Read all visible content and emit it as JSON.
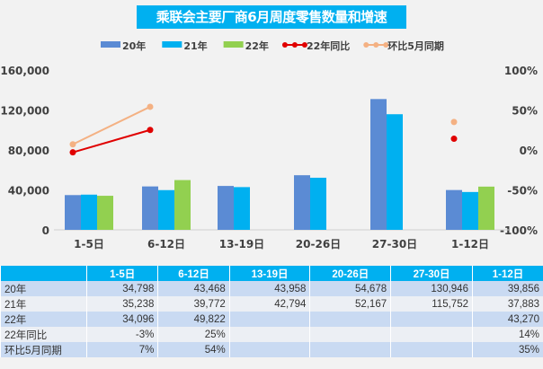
{
  "chart_data": {
    "type": "bar",
    "title": "乘联会主要厂商6月周度零售数量和增速",
    "categories": [
      "1-5日",
      "6-12日",
      "13-19日",
      "20-26日",
      "27-30日",
      "1-12日"
    ],
    "series": [
      {
        "name": "20年",
        "type": "bar",
        "axis": "left",
        "color": "#5b8bd4",
        "values": [
          34798,
          43468,
          43958,
          54678,
          130946,
          39856
        ]
      },
      {
        "name": "21年",
        "type": "bar",
        "axis": "left",
        "color": "#00b0f0",
        "values": [
          35238,
          39772,
          42794,
          52167,
          115752,
          37883
        ]
      },
      {
        "name": "22年",
        "type": "bar",
        "axis": "left",
        "color": "#92d050",
        "values": [
          34096,
          49822,
          null,
          null,
          null,
          43270
        ]
      },
      {
        "name": "22年同比",
        "type": "line",
        "axis": "right",
        "color": "#e00000",
        "values": [
          -3,
          25,
          null,
          null,
          null,
          14
        ]
      },
      {
        "name": "环比5月同期",
        "type": "line",
        "axis": "right",
        "color": "#f4b183",
        "values": [
          7,
          54,
          null,
          null,
          null,
          35
        ]
      }
    ],
    "left_axis": {
      "ylim": [
        0,
        160000
      ],
      "ticks": [
        "0",
        "40,000",
        "80,000",
        "120,000",
        "160,000"
      ]
    },
    "right_axis": {
      "ylim": [
        -100,
        100
      ],
      "ticks": [
        "-100%",
        "-50%",
        "0%",
        "50%",
        "100%"
      ]
    },
    "legend_position": "top",
    "grid": false
  },
  "table": {
    "headers": [
      "",
      "1-5日",
      "6-12日",
      "13-19日",
      "20-26日",
      "27-30日",
      "1-12日"
    ],
    "rows": [
      [
        "20年",
        "34,798",
        "43,468",
        "43,958",
        "54,678",
        "130,946",
        "39,856"
      ],
      [
        "21年",
        "35,238",
        "39,772",
        "42,794",
        "52,167",
        "115,752",
        "37,883"
      ],
      [
        "22年",
        "34,096",
        "49,822",
        "",
        "",
        "",
        "43,270"
      ],
      [
        "22年同比",
        "-3%",
        "25%",
        "",
        "",
        "",
        "14%"
      ],
      [
        "环比5月同期",
        "7%",
        "54%",
        "",
        "",
        "",
        "35%"
      ]
    ]
  }
}
